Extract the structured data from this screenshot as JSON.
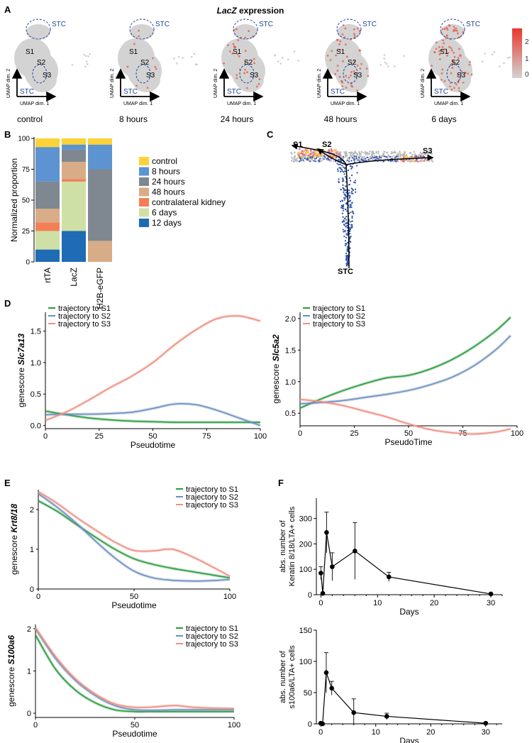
{
  "panel_letters": [
    "A",
    "B",
    "C",
    "D",
    "E",
    "F"
  ],
  "panel_a": {
    "title_gene": "LacZ",
    "title_rest": " expression",
    "cluster_labels": [
      "S1",
      "S2",
      "S3"
    ],
    "stc_label": "STC",
    "axis_dim1": "UMAP dim. 1",
    "axis_dim2": "UMAP dim. 2",
    "conditions": [
      "control",
      "8 hours",
      "24 hours",
      "48 hours",
      "6 days"
    ],
    "expression_level": [
      0.0,
      0.1,
      0.35,
      0.55,
      0.8
    ],
    "colorbar": {
      "ticks": [
        2,
        1,
        0
      ],
      "low_color": "#d3d3d3",
      "high_color": "#e8382c"
    }
  },
  "chart_data": [
    {
      "id": "B",
      "type": "bar",
      "stacked": true,
      "ylabel": "Normalized proportion",
      "ylim": [
        0,
        100
      ],
      "yticks": [
        0,
        25,
        50,
        75,
        100
      ],
      "categories": [
        "rtTA",
        "LacZ",
        "H2B-eGFP"
      ],
      "series": [
        {
          "name": "12 days",
          "color": "#1f6bb5",
          "values": [
            10,
            25,
            0
          ]
        },
        {
          "name": "6 days",
          "color": "#cfe0a6",
          "values": [
            15,
            40,
            0
          ]
        },
        {
          "name": "contralateral kidney",
          "color": "#f47f56",
          "values": [
            7,
            2,
            0
          ]
        },
        {
          "name": "48 hours",
          "color": "#d8ac86",
          "values": [
            11,
            14,
            17
          ]
        },
        {
          "name": "24 hours",
          "color": "#7f8791",
          "values": [
            22,
            10,
            58
          ]
        },
        {
          "name": "8 hours",
          "color": "#5c93d0",
          "values": [
            28,
            4,
            20
          ]
        },
        {
          "name": "control",
          "color": "#fbd238",
          "values": [
            7,
            5,
            5
          ]
        }
      ],
      "legend_order": [
        "control",
        "8 hours",
        "24 hours",
        "48 hours",
        "contralateral kidney",
        "6 days",
        "12 days"
      ]
    },
    {
      "id": "C",
      "type": "scatter",
      "endpoints": [
        "S1",
        "S2",
        "S3",
        "STC"
      ]
    },
    {
      "id": "D1",
      "type": "line",
      "xlabel": "Pseudotime",
      "ylabel_prefix": "genescore ",
      "ylabel_gene": "Slc7a13",
      "xlim": [
        0,
        100
      ],
      "ylim": [
        -0.05,
        1.8
      ],
      "xticks": [
        0,
        25,
        50,
        75,
        100
      ],
      "yticks": [
        0.0,
        0.5,
        1.0,
        1.5
      ],
      "ytick_labels": [
        "0.0",
        "0.5",
        "1.0",
        "1.5"
      ],
      "series": [
        {
          "name": "trajectory to S1",
          "color": "#2a9a3e",
          "x": [
            0,
            10,
            20,
            30,
            40,
            50,
            60,
            70,
            80,
            90,
            100
          ],
          "y": [
            0.23,
            0.17,
            0.12,
            0.09,
            0.07,
            0.06,
            0.05,
            0.05,
            0.05,
            0.05,
            0.05
          ]
        },
        {
          "name": "trajectory to S2",
          "color": "#6b8ec0",
          "x": [
            0,
            10,
            20,
            30,
            40,
            50,
            60,
            70,
            80,
            90,
            100
          ],
          "y": [
            0.17,
            0.18,
            0.18,
            0.19,
            0.21,
            0.27,
            0.34,
            0.33,
            0.24,
            0.12,
            0.0
          ]
        },
        {
          "name": "trajectory to S3",
          "color": "#ef8e80",
          "x": [
            0,
            10,
            20,
            30,
            40,
            50,
            60,
            70,
            80,
            90,
            100
          ],
          "y": [
            0.08,
            0.22,
            0.4,
            0.6,
            0.78,
            1.0,
            1.28,
            1.52,
            1.7,
            1.74,
            1.66
          ]
        }
      ]
    },
    {
      "id": "D2",
      "type": "line",
      "xlabel": "PseudoTime",
      "ylabel_prefix": "genescore ",
      "ylabel_gene": "Slc5a2",
      "xlim": [
        0,
        100
      ],
      "ylim": [
        0.3,
        2.1
      ],
      "xticks": [
        0,
        25,
        50,
        75,
        100
      ],
      "yticks": [
        0.5,
        1.0,
        1.5,
        2.0
      ],
      "ytick_labels": [
        "0.5",
        "1.0",
        "1.5",
        "2.0"
      ],
      "series": [
        {
          "name": "trajectory to S1",
          "color": "#2a9a3e",
          "x": [
            0,
            10,
            20,
            30,
            40,
            50,
            60,
            70,
            80,
            90,
            97
          ],
          "y": [
            0.58,
            0.73,
            0.86,
            0.97,
            1.06,
            1.1,
            1.2,
            1.35,
            1.55,
            1.8,
            2.02
          ]
        },
        {
          "name": "trajectory to S2",
          "color": "#6b8ec0",
          "x": [
            0,
            10,
            20,
            30,
            40,
            50,
            60,
            70,
            80,
            90,
            97
          ],
          "y": [
            0.65,
            0.67,
            0.7,
            0.75,
            0.8,
            0.86,
            0.95,
            1.07,
            1.25,
            1.5,
            1.73
          ]
        },
        {
          "name": "trajectory to S3",
          "color": "#ef8e80",
          "x": [
            0,
            10,
            20,
            30,
            40,
            50,
            60,
            70,
            80,
            90,
            97
          ],
          "y": [
            0.72,
            0.68,
            0.62,
            0.53,
            0.44,
            0.33,
            0.24,
            0.19,
            0.17,
            0.2,
            0.25
          ]
        }
      ]
    },
    {
      "id": "E1",
      "type": "line",
      "xlabel": "Pseudotime",
      "ylabel_prefix": "genescore ",
      "ylabel_gene": "Krt8/18",
      "xlim": [
        0,
        100
      ],
      "ylim": [
        0,
        2.5
      ],
      "xticks": [
        0,
        50,
        100
      ],
      "yticks": [
        0,
        1,
        2
      ],
      "ytick_labels": [
        "0",
        "1",
        "2"
      ],
      "series": [
        {
          "name": "trajectory to S1",
          "color": "#2a9a3e",
          "x": [
            0,
            10,
            20,
            30,
            40,
            50,
            60,
            70,
            80,
            90,
            100
          ],
          "y": [
            2.22,
            1.95,
            1.62,
            1.3,
            1.0,
            0.76,
            0.62,
            0.52,
            0.44,
            0.36,
            0.28
          ]
        },
        {
          "name": "trajectory to S2",
          "color": "#6b8ec0",
          "x": [
            0,
            10,
            20,
            30,
            40,
            50,
            60,
            70,
            80,
            90,
            100
          ],
          "y": [
            2.4,
            2.05,
            1.65,
            1.2,
            0.78,
            0.45,
            0.28,
            0.22,
            0.2,
            0.21,
            0.24
          ]
        },
        {
          "name": "trajectory to S3",
          "color": "#ef8e80",
          "x": [
            0,
            10,
            20,
            30,
            40,
            50,
            60,
            70,
            80,
            90,
            100
          ],
          "y": [
            2.45,
            2.15,
            1.8,
            1.48,
            1.18,
            0.97,
            0.96,
            1.0,
            0.82,
            0.58,
            0.32
          ]
        }
      ]
    },
    {
      "id": "E2",
      "type": "line",
      "xlabel": "Pseudotime",
      "ylabel_prefix": "genescore ",
      "ylabel_gene": "S100a6",
      "xlim": [
        0,
        100
      ],
      "ylim": [
        -0.1,
        2.1
      ],
      "xticks": [
        0,
        50,
        100
      ],
      "yticks": [
        0,
        1,
        2
      ],
      "ytick_labels": [
        "0",
        "1",
        "2"
      ],
      "series": [
        {
          "name": "trajectory to S1",
          "color": "#2a9a3e",
          "x": [
            0,
            10,
            20,
            30,
            40,
            50,
            60,
            70,
            80,
            90,
            100
          ],
          "y": [
            1.85,
            1.05,
            0.55,
            0.25,
            0.08,
            0.04,
            0.04,
            0.04,
            0.04,
            0.04,
            0.04
          ]
        },
        {
          "name": "trajectory to S2",
          "color": "#6b8ec0",
          "x": [
            0,
            10,
            20,
            30,
            40,
            50,
            60,
            70,
            80,
            90,
            100
          ],
          "y": [
            2.0,
            1.3,
            0.78,
            0.42,
            0.18,
            0.08,
            0.07,
            0.08,
            0.08,
            0.08,
            0.08
          ]
        },
        {
          "name": "trajectory to S3",
          "color": "#ef8e80",
          "x": [
            0,
            10,
            20,
            30,
            40,
            50,
            60,
            70,
            80,
            90,
            100
          ],
          "y": [
            2.02,
            1.35,
            0.82,
            0.46,
            0.22,
            0.14,
            0.15,
            0.18,
            0.14,
            0.12,
            0.11
          ]
        }
      ]
    },
    {
      "id": "F1",
      "type": "line",
      "xlabel": "Days",
      "ylabel": "abs. number of\nKeratin 8/18/LTA+ cells",
      "xlim": [
        -0.8,
        32
      ],
      "ylim": [
        0,
        380
      ],
      "xticks": [
        0,
        10,
        20,
        30
      ],
      "yticks": [
        0,
        100,
        200,
        300
      ],
      "points": [
        {
          "x": 0,
          "y": 85,
          "err": 25
        },
        {
          "x": 0.33,
          "y": 5,
          "err": 5
        },
        {
          "x": 1,
          "y": 245,
          "err": 80
        },
        {
          "x": 2,
          "y": 110,
          "err": 55
        },
        {
          "x": 6,
          "y": 172,
          "err": 112
        },
        {
          "x": 12,
          "y": 70,
          "err": 18
        },
        {
          "x": 30,
          "y": 3,
          "err": 3
        }
      ]
    },
    {
      "id": "F2",
      "type": "line",
      "xlabel": "Days",
      "ylabel": "abs. number of\ns100a6/LTA+ cells",
      "xlim": [
        -0.8,
        33
      ],
      "ylim": [
        0,
        150
      ],
      "xticks": [
        0,
        10,
        20,
        30
      ],
      "yticks": [
        0,
        50,
        100,
        150
      ],
      "points": [
        {
          "x": 0,
          "y": 1,
          "err": 1
        },
        {
          "x": 0.33,
          "y": 0,
          "err": 0.5
        },
        {
          "x": 1,
          "y": 82,
          "err": 32
        },
        {
          "x": 2,
          "y": 57,
          "err": 11
        },
        {
          "x": 6,
          "y": 18,
          "err": 22
        },
        {
          "x": 12,
          "y": 12,
          "err": 5
        },
        {
          "x": 30,
          "y": 1,
          "err": 1
        }
      ]
    }
  ]
}
